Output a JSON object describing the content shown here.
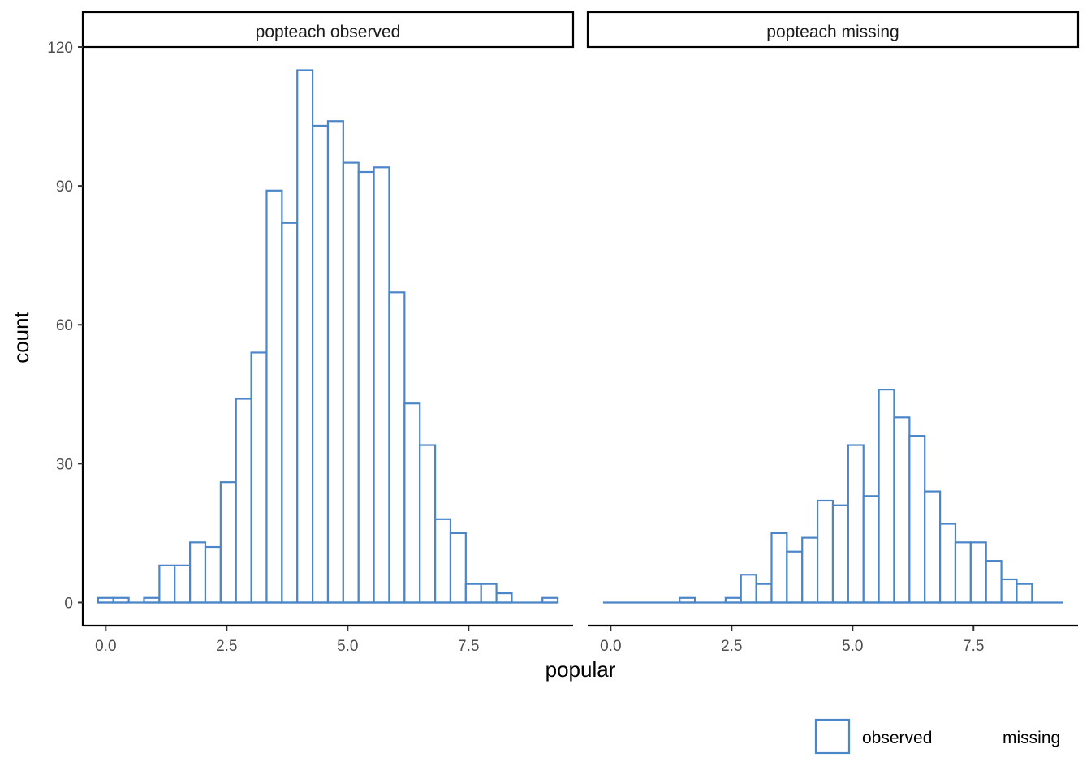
{
  "chart_data": {
    "type": "bar",
    "subtype": "faceted-histogram",
    "title": "",
    "xlabel": "popular",
    "ylabel": "count",
    "bar_color": "#4a86c8",
    "bin_width": 0.3167,
    "first_bin_center": 0.0,
    "xlim": [
      -0.475,
      9.66
    ],
    "ylim": [
      -5,
      120
    ],
    "x_ticks": [
      0.0,
      2.5,
      5.0,
      7.5
    ],
    "x_tick_labels": [
      "0.0",
      "2.5",
      "5.0",
      "7.5"
    ],
    "y_ticks": [
      0,
      30,
      60,
      90,
      120
    ],
    "y_tick_labels": [
      "0",
      "30",
      "60",
      "90",
      "120"
    ],
    "grid": false,
    "legend": {
      "placement": "bottom-right",
      "items": [
        {
          "label": "observed",
          "color": "#4a86c8"
        },
        {
          "label": "missing",
          "color": "#ffffff"
        }
      ]
    },
    "facets": [
      {
        "label": "popteach observed",
        "counts": [
          1,
          1,
          0,
          1,
          8,
          8,
          13,
          12,
          26,
          44,
          54,
          89,
          82,
          115,
          103,
          104,
          95,
          93,
          94,
          67,
          43,
          34,
          18,
          15,
          4,
          4,
          2,
          0,
          0,
          1
        ]
      },
      {
        "label": "popteach missing",
        "counts": [
          0,
          0,
          0,
          0,
          0,
          1,
          0,
          0,
          1,
          6,
          4,
          15,
          11,
          14,
          22,
          21,
          34,
          23,
          46,
          40,
          36,
          24,
          17,
          13,
          13,
          9,
          5,
          4,
          0,
          0
        ]
      }
    ]
  }
}
